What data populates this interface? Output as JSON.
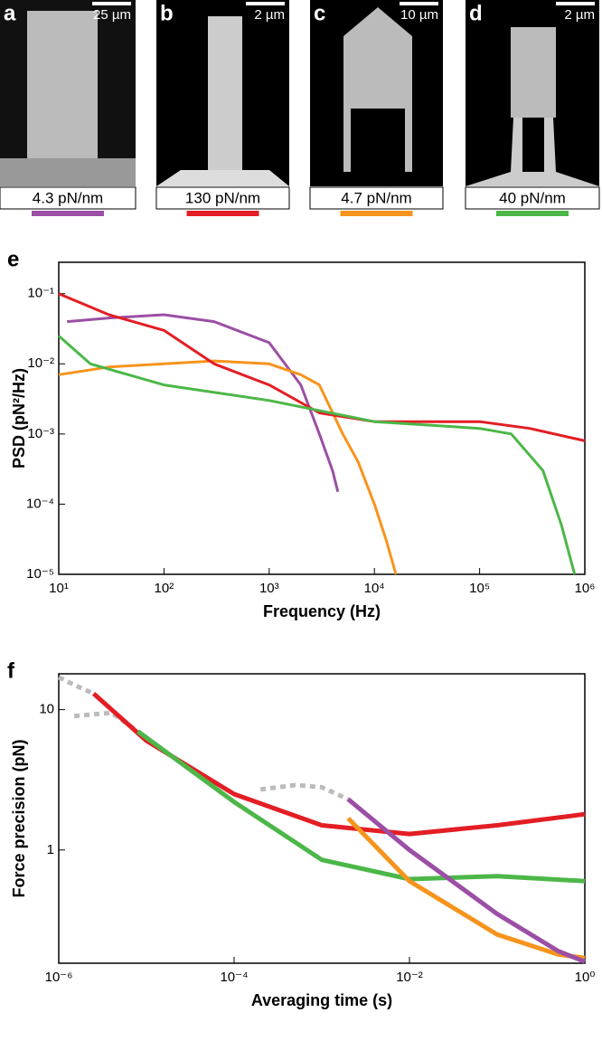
{
  "panels": [
    {
      "label": "a",
      "scale": "25 µm",
      "stiffness": "4.3 pN/nm",
      "color": "#9b4fa5"
    },
    {
      "label": "b",
      "scale": "2 µm",
      "stiffness": "130 pN/nm",
      "color": "#e31e24"
    },
    {
      "label": "c",
      "scale": "10 µm",
      "stiffness": "4.7 pN/nm",
      "color": "#f7941d"
    },
    {
      "label": "d",
      "scale": "2 µm",
      "stiffness": "40 pN/nm",
      "color": "#4cb748"
    }
  ],
  "chart_data": [
    {
      "type": "line",
      "panel": "e",
      "xlabel": "Frequency (Hz)",
      "ylabel": "PSD (pN²/Hz)",
      "log_x": true,
      "log_y": true,
      "xlim": [
        10,
        1000000
      ],
      "ylim": [
        1e-05,
        0.28
      ],
      "xticks": [
        {
          "value": 10,
          "label": "10¹"
        },
        {
          "value": 100,
          "label": "10²"
        },
        {
          "value": 1000,
          "label": "10³"
        },
        {
          "value": 10000,
          "label": "10⁴"
        },
        {
          "value": 100000,
          "label": "10⁵"
        },
        {
          "value": 1000000,
          "label": "10⁶"
        }
      ],
      "yticks": [
        {
          "value": 1e-05,
          "label": "10⁻⁵"
        },
        {
          "value": 0.0001,
          "label": "10⁻⁴"
        },
        {
          "value": 0.001,
          "label": "10⁻³"
        },
        {
          "value": 0.01,
          "label": "10⁻²"
        },
        {
          "value": 0.1,
          "label": "10⁻¹"
        }
      ],
      "series": [
        {
          "color": "#9b4fa5",
          "x": [
            12,
            30,
            100,
            300,
            1000,
            2000,
            3000,
            4000,
            4500
          ],
          "values": [
            0.04,
            0.045,
            0.05,
            0.04,
            0.02,
            0.005,
            0.001,
            0.0003,
            0.00015
          ]
        },
        {
          "color": "#f7941d",
          "x": [
            10,
            30,
            100,
            300,
            1000,
            2000,
            3000,
            5000,
            7000,
            10000,
            13000,
            16000
          ],
          "values": [
            0.007,
            0.009,
            0.01,
            0.011,
            0.01,
            0.007,
            0.005,
            0.001,
            0.0004,
            0.0001,
            3e-05,
            1e-05
          ]
        },
        {
          "color": "#e31e24",
          "x": [
            10,
            30,
            100,
            300,
            1000,
            3000,
            10000,
            100000,
            300000,
            1000000
          ],
          "values": [
            0.1,
            0.05,
            0.03,
            0.01,
            0.005,
            0.002,
            0.0015,
            0.0015,
            0.0012,
            0.0008
          ]
        },
        {
          "color": "#4cb748",
          "x": [
            10,
            20,
            100,
            1000,
            10000,
            100000,
            200000,
            400000,
            600000,
            800000
          ],
          "values": [
            0.025,
            0.01,
            0.005,
            0.003,
            0.0015,
            0.0012,
            0.001,
            0.0003,
            5e-05,
            1e-05
          ]
        }
      ]
    },
    {
      "type": "line",
      "panel": "f",
      "xlabel": "Averaging time (s)",
      "ylabel": "Force precision (pN)",
      "log_x": true,
      "log_y": true,
      "xlim": [
        1e-06,
        1
      ],
      "ylim": [
        0.156,
        18
      ],
      "xticks": [
        {
          "value": 1e-06,
          "label": "10⁻⁶"
        },
        {
          "value": 0.0001,
          "label": "10⁻⁴"
        },
        {
          "value": 0.01,
          "label": "10⁻²"
        },
        {
          "value": 1,
          "label": "10⁰"
        }
      ],
      "yticks": [
        1,
        10
      ],
      "series": [
        {
          "color": "#bbbbbb",
          "dash": true,
          "x": [
            1e-06,
            1.5e-06,
            2.5e-06
          ],
          "values": [
            17,
            15,
            13
          ]
        },
        {
          "color": "#bbbbbb",
          "dash": true,
          "x": [
            1.5e-06,
            4e-06,
            8e-06
          ],
          "values": [
            9,
            9.5,
            7
          ]
        },
        {
          "color": "#bbbbbb",
          "dash": true,
          "x": [
            0.0002,
            0.0005,
            0.001,
            0.002
          ],
          "values": [
            2.7,
            2.9,
            2.8,
            2.3
          ]
        },
        {
          "color": "#e31e24",
          "x": [
            2.5e-06,
            1e-05,
            0.0001,
            0.001,
            0.01,
            0.1,
            1
          ],
          "values": [
            13,
            6,
            2.5,
            1.5,
            1.3,
            1.5,
            1.8
          ]
        },
        {
          "color": "#4cb748",
          "x": [
            8e-06,
            0.0001,
            0.001,
            0.01,
            0.1,
            1
          ],
          "values": [
            7,
            2.2,
            0.85,
            0.62,
            0.65,
            0.6
          ]
        },
        {
          "color": "#f7941d",
          "x": [
            0.002,
            0.01,
            0.1,
            0.5,
            1
          ],
          "values": [
            1.68,
            0.6,
            0.25,
            0.18,
            0.17
          ]
        },
        {
          "color": "#9b4fa5",
          "x": [
            0.002,
            0.01,
            0.1,
            0.5,
            1
          ],
          "values": [
            2.3,
            1.0,
            0.35,
            0.19,
            0.16
          ]
        }
      ]
    }
  ]
}
